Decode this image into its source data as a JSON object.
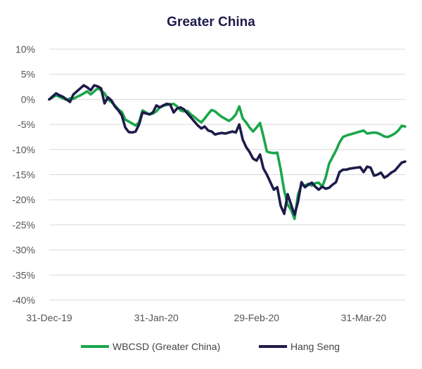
{
  "chart_data": {
    "type": "line",
    "title": "Greater China",
    "xlabel": "",
    "ylabel": "",
    "ylim": [
      -40,
      10
    ],
    "y_ticks": [
      "10%",
      "5%",
      "0%",
      "-5%",
      "-10%",
      "-15%",
      "-20%",
      "-25%",
      "-30%",
      "-35%",
      "-40%"
    ],
    "x_ticks": [
      "31-Dec-19",
      "31-Jan-20",
      "29-Feb-20",
      "31-Mar-20"
    ],
    "x_tick_days": [
      0,
      31,
      60,
      91
    ],
    "grid": "horizontal",
    "legend_position": "bottom",
    "series": [
      {
        "name": "WBCSD (Greater China)",
        "color": "#1aa64a",
        "points": [
          [
            0,
            0.0
          ],
          [
            1,
            0.4
          ],
          [
            2,
            0.8
          ],
          [
            3,
            0.5
          ],
          [
            4,
            0.2
          ],
          [
            5,
            -0.1
          ],
          [
            6,
            0.2
          ],
          [
            7,
            0.1
          ],
          [
            8,
            0.5
          ],
          [
            9,
            0.8
          ],
          [
            10,
            1.2
          ],
          [
            11,
            1.6
          ],
          [
            12,
            1.0
          ],
          [
            13,
            1.6
          ],
          [
            14,
            2.2
          ],
          [
            15,
            1.8
          ],
          [
            16,
            1.2
          ],
          [
            17,
            0.0
          ],
          [
            18,
            -0.5
          ],
          [
            19,
            -1.2
          ],
          [
            20,
            -2.0
          ],
          [
            21,
            -2.5
          ],
          [
            22,
            -4.0
          ],
          [
            23,
            -4.4
          ],
          [
            24,
            -4.8
          ],
          [
            25,
            -5.2
          ],
          [
            26,
            -4.6
          ],
          [
            27,
            -2.2
          ],
          [
            28,
            -2.6
          ],
          [
            29,
            -3.0
          ],
          [
            30,
            -2.8
          ],
          [
            31,
            -2.4
          ],
          [
            32,
            -1.6
          ],
          [
            33,
            -1.3
          ],
          [
            34,
            -1.1
          ],
          [
            35,
            -1.0
          ],
          [
            36,
            -0.9
          ],
          [
            37,
            -1.4
          ],
          [
            38,
            -2.2
          ],
          [
            39,
            -2.4
          ],
          [
            40,
            -2.3
          ],
          [
            41,
            -3.0
          ],
          [
            42,
            -3.5
          ],
          [
            43,
            -4.1
          ],
          [
            44,
            -4.6
          ],
          [
            45,
            -3.8
          ],
          [
            46,
            -2.9
          ],
          [
            47,
            -2.1
          ],
          [
            48,
            -2.4
          ],
          [
            49,
            -3.0
          ],
          [
            50,
            -3.5
          ],
          [
            51,
            -3.9
          ],
          [
            52,
            -4.3
          ],
          [
            53,
            -3.8
          ],
          [
            54,
            -3.0
          ],
          [
            55,
            -1.4
          ],
          [
            56,
            -3.8
          ],
          [
            57,
            -4.6
          ],
          [
            58,
            -5.6
          ],
          [
            59,
            -6.4
          ],
          [
            60,
            -5.6
          ],
          [
            61,
            -4.7
          ],
          [
            62,
            -7.4
          ],
          [
            63,
            -10.4
          ],
          [
            64,
            -10.6
          ],
          [
            65,
            -10.7
          ],
          [
            66,
            -10.6
          ],
          [
            67,
            -14.0
          ],
          [
            68,
            -18.2
          ],
          [
            69,
            -21.0
          ],
          [
            70,
            -22.0
          ],
          [
            71,
            -23.8
          ],
          [
            72,
            -19.0
          ],
          [
            73,
            -17.0
          ],
          [
            74,
            -17.2
          ],
          [
            75,
            -16.8
          ],
          [
            76,
            -17.2
          ],
          [
            77,
            -16.7
          ],
          [
            78,
            -16.6
          ],
          [
            79,
            -17.4
          ],
          [
            80,
            -15.6
          ],
          [
            81,
            -12.8
          ],
          [
            82,
            -11.5
          ],
          [
            83,
            -10.2
          ],
          [
            84,
            -8.6
          ],
          [
            85,
            -7.5
          ],
          [
            86,
            -7.2
          ],
          [
            87,
            -7.0
          ],
          [
            88,
            -6.8
          ],
          [
            89,
            -6.6
          ],
          [
            90,
            -6.4
          ],
          [
            91,
            -6.2
          ],
          [
            92,
            -6.8
          ],
          [
            93,
            -6.7
          ],
          [
            94,
            -6.6
          ],
          [
            95,
            -6.7
          ],
          [
            96,
            -7.0
          ],
          [
            97,
            -7.4
          ],
          [
            98,
            -7.5
          ],
          [
            99,
            -7.2
          ],
          [
            100,
            -6.8
          ],
          [
            101,
            -6.2
          ],
          [
            102,
            -5.3
          ],
          [
            103,
            -5.4
          ]
        ]
      },
      {
        "name": "Hang Seng",
        "color": "#1e1b4b",
        "points": [
          [
            0,
            0.0
          ],
          [
            1,
            0.6
          ],
          [
            2,
            1.2
          ],
          [
            3,
            0.8
          ],
          [
            4,
            0.5
          ],
          [
            5,
            0.0
          ],
          [
            6,
            -0.5
          ],
          [
            7,
            1.0
          ],
          [
            8,
            1.6
          ],
          [
            9,
            2.2
          ],
          [
            10,
            2.8
          ],
          [
            11,
            2.4
          ],
          [
            12,
            1.8
          ],
          [
            13,
            2.8
          ],
          [
            14,
            2.6
          ],
          [
            15,
            2.2
          ],
          [
            16,
            -0.8
          ],
          [
            17,
            0.4
          ],
          [
            18,
            -0.2
          ],
          [
            19,
            -1.4
          ],
          [
            20,
            -2.2
          ],
          [
            21,
            -3.2
          ],
          [
            22,
            -5.6
          ],
          [
            23,
            -6.5
          ],
          [
            24,
            -6.6
          ],
          [
            25,
            -6.4
          ],
          [
            26,
            -5.0
          ],
          [
            27,
            -2.6
          ],
          [
            28,
            -2.8
          ],
          [
            29,
            -3.0
          ],
          [
            30,
            -2.6
          ],
          [
            31,
            -1.2
          ],
          [
            32,
            -1.6
          ],
          [
            33,
            -1.2
          ],
          [
            34,
            -0.9
          ],
          [
            35,
            -1.0
          ],
          [
            36,
            -2.6
          ],
          [
            37,
            -1.8
          ],
          [
            38,
            -1.6
          ],
          [
            39,
            -2.0
          ],
          [
            40,
            -2.8
          ],
          [
            41,
            -3.6
          ],
          [
            42,
            -4.4
          ],
          [
            43,
            -5.2
          ],
          [
            44,
            -5.8
          ],
          [
            45,
            -5.4
          ],
          [
            46,
            -6.2
          ],
          [
            47,
            -6.4
          ],
          [
            48,
            -7.0
          ],
          [
            49,
            -6.8
          ],
          [
            50,
            -6.7
          ],
          [
            51,
            -6.8
          ],
          [
            52,
            -6.6
          ],
          [
            53,
            -6.4
          ],
          [
            54,
            -6.6
          ],
          [
            55,
            -5.0
          ],
          [
            56,
            -8.0
          ],
          [
            57,
            -9.5
          ],
          [
            58,
            -10.5
          ],
          [
            59,
            -11.8
          ],
          [
            60,
            -12.2
          ],
          [
            61,
            -11.0
          ],
          [
            62,
            -13.8
          ],
          [
            63,
            -15.0
          ],
          [
            64,
            -16.5
          ],
          [
            65,
            -18.0
          ],
          [
            66,
            -17.5
          ],
          [
            67,
            -21.2
          ],
          [
            68,
            -22.8
          ],
          [
            69,
            -18.9
          ],
          [
            70,
            -21.0
          ],
          [
            71,
            -23.0
          ],
          [
            72,
            -20.4
          ],
          [
            73,
            -16.5
          ],
          [
            74,
            -17.5
          ],
          [
            75,
            -17.0
          ],
          [
            76,
            -16.6
          ],
          [
            77,
            -17.4
          ],
          [
            78,
            -18.0
          ],
          [
            79,
            -17.4
          ],
          [
            80,
            -17.8
          ],
          [
            81,
            -17.6
          ],
          [
            82,
            -17.0
          ],
          [
            83,
            -16.5
          ],
          [
            84,
            -14.5
          ],
          [
            85,
            -14.0
          ],
          [
            86,
            -14.0
          ],
          [
            87,
            -13.8
          ],
          [
            88,
            -13.7
          ],
          [
            89,
            -13.6
          ],
          [
            90,
            -13.5
          ],
          [
            91,
            -14.5
          ],
          [
            92,
            -13.4
          ],
          [
            93,
            -13.6
          ],
          [
            94,
            -15.2
          ],
          [
            95,
            -15.0
          ],
          [
            96,
            -14.6
          ],
          [
            97,
            -15.6
          ],
          [
            98,
            -15.2
          ],
          [
            99,
            -14.6
          ],
          [
            100,
            -14.2
          ],
          [
            101,
            -13.4
          ],
          [
            102,
            -12.6
          ],
          [
            103,
            -12.4
          ]
        ]
      }
    ]
  }
}
